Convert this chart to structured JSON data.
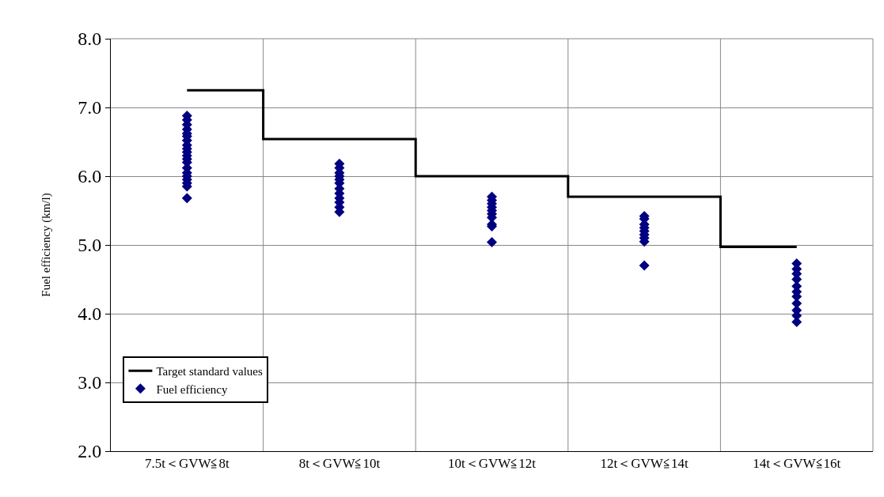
{
  "chart_data": {
    "type": "step",
    "ylabel": "Fuel efficiency (km/l)",
    "categories": [
      "7.5t＜GVW≦8t",
      "8t＜GVW≦10t",
      "10t＜GVW≦12t",
      "12t＜GVW≦14t",
      "14t＜GVW≦16t"
    ],
    "ylim": [
      2.0,
      8.0
    ],
    "yticks": [
      {
        "value": 2,
        "label": "2.0"
      },
      {
        "value": 3,
        "label": "3.0"
      },
      {
        "value": 4,
        "label": "4.0"
      },
      {
        "value": 5,
        "label": "5.0"
      },
      {
        "value": 6,
        "label": "6.0"
      },
      {
        "value": 7,
        "label": "7.0"
      },
      {
        "value": 8,
        "label": "8.0"
      }
    ],
    "grid": true,
    "legend": "bottom left",
    "series": [
      {
        "name": "Target standard values",
        "marker": "none",
        "color": "#000000",
        "values": [
          7.25,
          6.54,
          6.0,
          5.7,
          4.97
        ]
      },
      {
        "name": "Fuel efficiency",
        "type": "scatter",
        "marker": "diamond",
        "color": "#000080",
        "x": [
          "7.5t＜GVW≦8t",
          "7.5t＜GVW≦8t",
          "7.5t＜GVW≦8t",
          "7.5t＜GVW≦8t",
          "7.5t＜GVW≦8t",
          "7.5t＜GVW≦8t",
          "7.5t＜GVW≦8t",
          "7.5t＜GVW≦8t",
          "7.5t＜GVW≦8t",
          "7.5t＜GVW≦8t",
          "7.5t＜GVW≦8t",
          "7.5t＜GVW≦8t",
          "7.5t＜GVW≦8t",
          "7.5t＜GVW≦8t",
          "7.5t＜GVW≦8t",
          "7.5t＜GVW≦8t",
          "7.5t＜GVW≦8t",
          "7.5t＜GVW≦8t",
          "7.5t＜GVW≦8t",
          "7.5t＜GVW≦8t",
          "8t＜GVW≦10t",
          "8t＜GVW≦10t",
          "8t＜GVW≦10t",
          "8t＜GVW≦10t",
          "8t＜GVW≦10t",
          "8t＜GVW≦10t",
          "8t＜GVW≦10t",
          "8t＜GVW≦10t",
          "8t＜GVW≦10t",
          "8t＜GVW≦10t",
          "8t＜GVW≦10t",
          "8t＜GVW≦10t",
          "10t＜GVW≦12t",
          "10t＜GVW≦12t",
          "10t＜GVW≦12t",
          "10t＜GVW≦12t",
          "10t＜GVW≦12t",
          "10t＜GVW≦12t",
          "10t＜GVW≦12t",
          "10t＜GVW≦12t",
          "10t＜GVW≦12t",
          "10t＜GVW≦12t",
          "12t＜GVW≦14t",
          "12t＜GVW≦14t",
          "12t＜GVW≦14t",
          "12t＜GVW≦14t",
          "12t＜GVW≦14t",
          "12t＜GVW≦14t",
          "12t＜GVW≦14t",
          "12t＜GVW≦14t",
          "12t＜GVW≦14t",
          "14t＜GVW≦16t",
          "14t＜GVW≦16t",
          "14t＜GVW≦16t",
          "14t＜GVW≦16t",
          "14t＜GVW≦16t",
          "14t＜GVW≦16t",
          "14t＜GVW≦16t",
          "14t＜GVW≦16t",
          "14t＜GVW≦16t",
          "14t＜GVW≦16t",
          "14t＜GVW≦16t"
        ],
        "values": [
          6.88,
          6.82,
          6.75,
          6.68,
          6.62,
          6.58,
          6.52,
          6.45,
          6.4,
          6.35,
          6.3,
          6.25,
          6.2,
          6.12,
          6.05,
          6.0,
          5.95,
          5.9,
          5.85,
          5.68,
          6.18,
          6.12,
          6.05,
          6.0,
          5.95,
          5.9,
          5.82,
          5.75,
          5.68,
          5.62,
          5.55,
          5.48,
          5.7,
          5.65,
          5.6,
          5.55,
          5.5,
          5.45,
          5.4,
          5.3,
          5.27,
          5.04,
          5.42,
          5.38,
          5.3,
          5.25,
          5.2,
          5.15,
          5.1,
          5.05,
          4.7,
          4.73,
          4.65,
          4.58,
          4.5,
          4.4,
          4.32,
          4.25,
          4.15,
          4.05,
          3.97,
          3.88
        ]
      }
    ]
  }
}
